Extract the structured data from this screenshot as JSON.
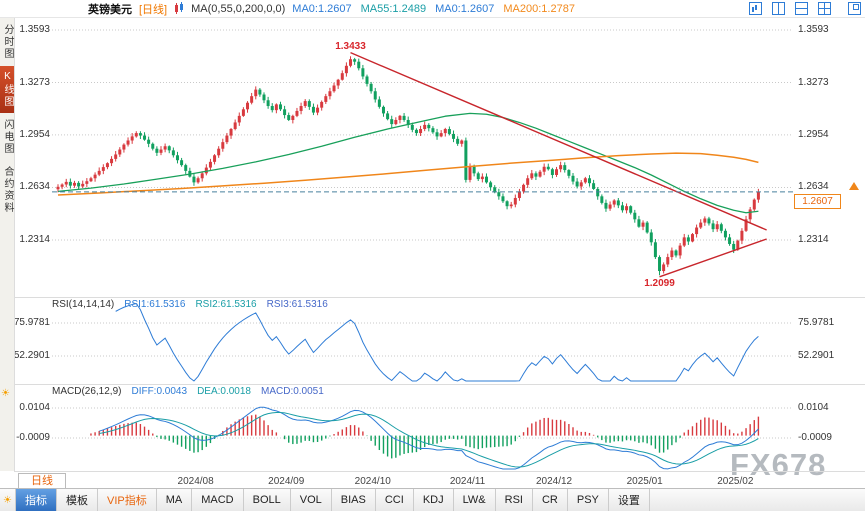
{
  "header": {
    "symbol": "英镑美元",
    "period_tag": "[日线]",
    "ma_settings": "MA(0,55,0,200,0,0)",
    "ma_values": [
      {
        "text": "MA0:1.2607",
        "color": "#2e7cd6"
      },
      {
        "text": "MA55:1.2489",
        "color": "#1a9ea6"
      },
      {
        "text": "MA0:1.2607",
        "color": "#2e7cd6"
      },
      {
        "text": "MA200:1.2787",
        "color": "#f28a1d"
      }
    ]
  },
  "sidebar": {
    "items": [
      {
        "label": "分时图",
        "active": false
      },
      {
        "label": "K线图",
        "active": true
      },
      {
        "label": "闪电图",
        "active": false
      },
      {
        "label": "合约资料",
        "active": false
      }
    ]
  },
  "rsi": {
    "title": "RSI(14,14,14)",
    "values": [
      {
        "text": "RSI1:61.5316",
        "color": "#2e7cd6"
      },
      {
        "text": "RSI2:61.5316",
        "color": "#1a9ea6"
      },
      {
        "text": "RSI3:61.5316",
        "color": "#4668c8"
      }
    ]
  },
  "macd": {
    "title": "MACD(26,12,9)",
    "values": [
      {
        "text": "DIFF:0.0043",
        "color": "#2e7cd6"
      },
      {
        "text": "DEA:0.0018",
        "color": "#1a9ea6"
      },
      {
        "text": "MACD:0.0051",
        "color": "#4668c8"
      }
    ]
  },
  "period_tab": "日线",
  "toolbar": {
    "items": [
      {
        "label": "指标",
        "style": "active"
      },
      {
        "label": "模板",
        "style": ""
      },
      {
        "label": "VIP指标",
        "style": "vip"
      },
      {
        "label": "MA",
        "style": ""
      },
      {
        "label": "MACD",
        "style": ""
      },
      {
        "label": "BOLL",
        "style": ""
      },
      {
        "label": "VOL",
        "style": ""
      },
      {
        "label": "BIAS",
        "style": ""
      },
      {
        "label": "CCI",
        "style": ""
      },
      {
        "label": "KDJ",
        "style": ""
      },
      {
        "label": "LW&",
        "style": ""
      },
      {
        "label": "RSI",
        "style": ""
      },
      {
        "label": "CR",
        "style": ""
      },
      {
        "label": "PSY",
        "style": ""
      },
      {
        "label": "设置",
        "style": ""
      }
    ]
  },
  "watermark": "FX678",
  "chart_data": {
    "type": "candlestick",
    "title": "英镑美元 日线 (GBP/USD daily)",
    "ylim": [
      1.203,
      1.365
    ],
    "price_ticks": [
      1.3593,
      1.3273,
      1.2954,
      1.2634,
      1.2314
    ],
    "current_price": 1.2607,
    "high_point": {
      "idx": 71,
      "price": 1.3433
    },
    "low_point": {
      "idx": 146,
      "price": 1.2099
    },
    "months": [
      {
        "label": "2024/08",
        "idx": 30
      },
      {
        "label": "2024/09",
        "idx": 52
      },
      {
        "label": "2024/10",
        "idx": 73
      },
      {
        "label": "2024/11",
        "idx": 96
      },
      {
        "label": "2024/12",
        "idx": 117
      },
      {
        "label": "2025/01",
        "idx": 139
      },
      {
        "label": "2025/02",
        "idx": 161
      }
    ],
    "closes": [
      1.2638,
      1.2652,
      1.2668,
      1.2645,
      1.2662,
      1.264,
      1.2656,
      1.2672,
      1.269,
      1.2712,
      1.2735,
      1.2758,
      1.2782,
      1.2808,
      1.2835,
      1.2865,
      1.2895,
      1.292,
      1.2945,
      1.2965,
      1.295,
      1.2925,
      1.29,
      1.287,
      1.2845,
      1.2865,
      1.2885,
      1.286,
      1.283,
      1.28,
      1.277,
      1.2735,
      1.27,
      1.2665,
      1.269,
      1.272,
      1.2755,
      1.279,
      1.283,
      1.287,
      1.291,
      1.295,
      1.299,
      1.303,
      1.307,
      1.311,
      1.315,
      1.319,
      1.323,
      1.32,
      1.3165,
      1.313,
      1.3105,
      1.314,
      1.311,
      1.3075,
      1.3045,
      1.307,
      1.31,
      1.313,
      1.316,
      1.3125,
      1.309,
      1.312,
      1.3155,
      1.319,
      1.322,
      1.3255,
      1.329,
      1.333,
      1.3375,
      1.3415,
      1.34,
      1.336,
      1.331,
      1.3265,
      1.322,
      1.317,
      1.3125,
      1.3085,
      1.305,
      1.302,
      1.3045,
      1.307,
      1.3045,
      1.3015,
      1.2985,
      1.2965,
      1.299,
      1.3015,
      1.2995,
      1.297,
      1.2945,
      1.2965,
      1.299,
      1.296,
      1.293,
      1.29,
      1.292,
      1.268,
      1.276,
      1.272,
      1.2685,
      1.27,
      1.2665,
      1.2635,
      1.2605,
      1.258,
      1.255,
      1.252,
      1.253,
      1.257,
      1.261,
      1.265,
      1.269,
      1.272,
      1.27,
      1.273,
      1.276,
      1.2745,
      1.271,
      1.2745,
      1.277,
      1.274,
      1.2705,
      1.267,
      1.264,
      1.2665,
      1.269,
      1.266,
      1.2625,
      1.258,
      1.254,
      1.2505,
      1.253,
      1.2555,
      1.2525,
      1.2495,
      1.252,
      1.248,
      1.244,
      1.2395,
      1.242,
      1.236,
      1.23,
      1.221,
      1.2125,
      1.2165,
      1.221,
      1.225,
      1.222,
      1.228,
      1.233,
      1.2305,
      1.235,
      1.239,
      1.242,
      1.2445,
      1.2415,
      1.238,
      1.241,
      1.237,
      1.233,
      1.229,
      1.2255,
      1.231,
      1.237,
      1.244,
      1.25,
      1.256,
      1.2607
    ],
    "ma55": [
      [
        0,
        1.261
      ],
      [
        8,
        1.263
      ],
      [
        16,
        1.2655
      ],
      [
        24,
        1.2685
      ],
      [
        32,
        1.2715
      ],
      [
        40,
        1.275
      ],
      [
        48,
        1.279
      ],
      [
        56,
        1.2835
      ],
      [
        64,
        1.2885
      ],
      [
        72,
        1.294
      ],
      [
        80,
        1.299
      ],
      [
        88,
        1.3035
      ],
      [
        94,
        1.3068
      ],
      [
        100,
        1.3085
      ],
      [
        104,
        1.308
      ],
      [
        108,
        1.306
      ],
      [
        112,
        1.303
      ],
      [
        116,
        1.2995
      ],
      [
        120,
        1.2955
      ],
      [
        124,
        1.2915
      ],
      [
        128,
        1.2875
      ],
      [
        132,
        1.2835
      ],
      [
        136,
        1.2795
      ],
      [
        140,
        1.2755
      ],
      [
        144,
        1.271
      ],
      [
        148,
        1.266
      ],
      [
        152,
        1.261
      ],
      [
        156,
        1.2565
      ],
      [
        160,
        1.2525
      ],
      [
        164,
        1.2495
      ],
      [
        167,
        1.248
      ],
      [
        170,
        1.2489
      ]
    ],
    "ma200": [
      [
        0,
        1.2588
      ],
      [
        10,
        1.26
      ],
      [
        20,
        1.2614
      ],
      [
        30,
        1.2628
      ],
      [
        40,
        1.2644
      ],
      [
        50,
        1.266
      ],
      [
        60,
        1.2678
      ],
      [
        70,
        1.2698
      ],
      [
        80,
        1.2718
      ],
      [
        90,
        1.274
      ],
      [
        100,
        1.2762
      ],
      [
        110,
        1.2782
      ],
      [
        120,
        1.28
      ],
      [
        128,
        1.2815
      ],
      [
        136,
        1.2828
      ],
      [
        144,
        1.2838
      ],
      [
        150,
        1.2843
      ],
      [
        156,
        1.284
      ],
      [
        160,
        1.283
      ],
      [
        164,
        1.2818
      ],
      [
        167,
        1.2805
      ],
      [
        170,
        1.2787
      ]
    ],
    "trendlines": [
      {
        "from": [
          71,
          1.3455
        ],
        "to": [
          172,
          1.2375
        ]
      },
      {
        "from": [
          146,
          1.209
        ],
        "to": [
          172,
          1.232
        ]
      }
    ],
    "rsi_ticks": [
      75.9781,
      52.2901
    ],
    "macd_ticks": [
      0.0104,
      -0.0009
    ],
    "indicators": {
      "rsi_period": 14,
      "macd_params": [
        26,
        12,
        9
      ]
    }
  }
}
